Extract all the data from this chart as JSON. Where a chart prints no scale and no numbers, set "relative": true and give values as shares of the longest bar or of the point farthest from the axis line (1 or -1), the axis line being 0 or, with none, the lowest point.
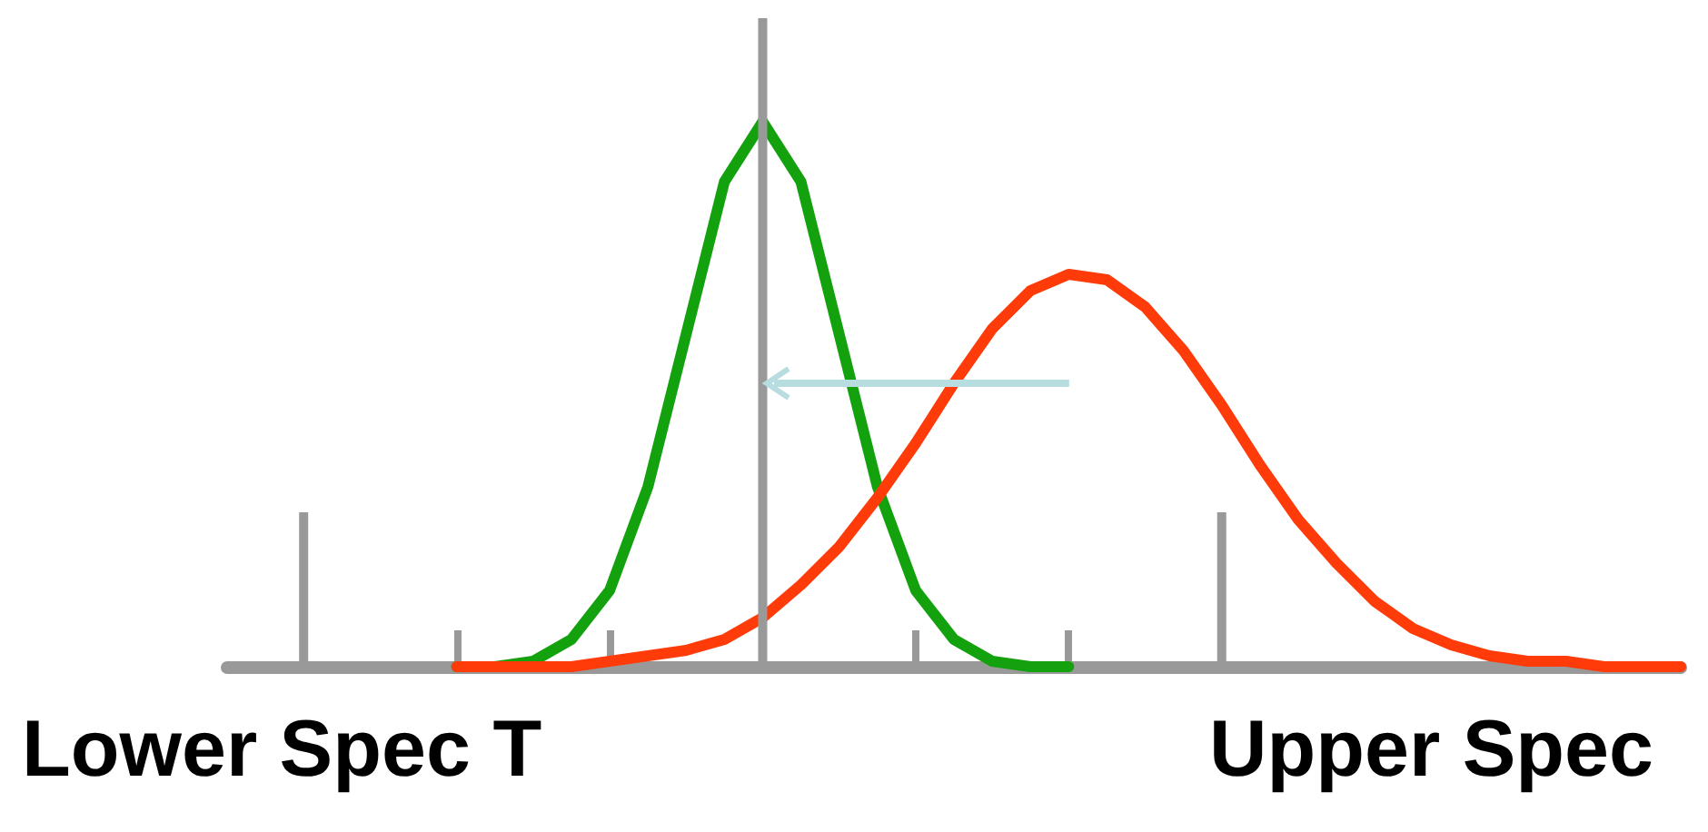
{
  "chart_data": {
    "type": "line",
    "relative": true,
    "marker": "none",
    "line_style": "solid",
    "grid": false,
    "categories": [
      null,
      null,
      null,
      null,
      null,
      null,
      null,
      null,
      null,
      null,
      null,
      null,
      null,
      null,
      null,
      null,
      null,
      null,
      null,
      null,
      null,
      null,
      null,
      null,
      null,
      null,
      null,
      null,
      null,
      null,
      null,
      null,
      null,
      null,
      null,
      null,
      null,
      null,
      null
    ],
    "series": [
      {
        "color": "#13a10e",
        "values": [
          null,
          null,
          null,
          null,
          null,
          null,
          0,
          0,
          0.01,
          0.05,
          0.14,
          0.33,
          0.61,
          0.89,
          1,
          0.89,
          0.61,
          0.33,
          0.14,
          0.05,
          0.01,
          0,
          0,
          null,
          null,
          null,
          null,
          null,
          null,
          null,
          null,
          null,
          null,
          null,
          null,
          null,
          null,
          null,
          null
        ]
      },
      {
        "color": "#ff3b0a",
        "values": [
          null,
          null,
          null,
          null,
          null,
          null,
          0,
          0,
          0,
          0,
          0.01,
          0.02,
          0.03,
          0.05,
          0.09,
          0.15,
          0.22,
          0.31,
          0.41,
          0.52,
          0.62,
          0.69,
          0.72,
          0.71,
          0.66,
          0.58,
          0.48,
          0.37,
          0.27,
          0.19,
          0.12,
          0.07,
          0.04,
          0.02,
          0.01,
          0.01,
          0,
          0,
          0
        ]
      }
    ],
    "annotations": [
      "Lower Spec T",
      "Upper Spec"
    ]
  }
}
